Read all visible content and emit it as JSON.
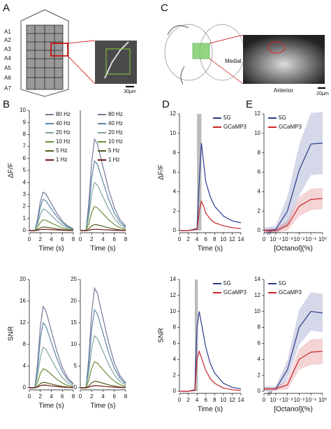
{
  "figure": {
    "panel_labels": [
      "A",
      "B",
      "C",
      "D",
      "E"
    ],
    "segment_labels": [
      "A1",
      "A2",
      "A3",
      "A4",
      "A5",
      "A6",
      "A7"
    ],
    "scale_bars": [
      "30μm",
      "20μm"
    ],
    "orientation_labels": [
      "Medial",
      "Anterior"
    ]
  },
  "chart_data": [
    {
      "type": "line",
      "ylabel": "ΔF/F",
      "xlabel": "Time (s)",
      "legend": "upper right",
      "x": [
        0,
        1,
        1.5,
        2,
        2.5,
        3,
        4,
        5,
        6,
        7,
        8
      ],
      "xlim": [
        0,
        8
      ],
      "xticks": [
        0,
        2,
        4,
        6,
        8
      ],
      "ylim": [
        0,
        10
      ],
      "yticks": [
        0,
        1,
        2,
        3,
        4,
        5,
        6,
        7,
        8,
        9,
        10
      ],
      "series": [
        {
          "name": "80 Hz",
          "color": "#77779a",
          "values": [
            0,
            0,
            0.96,
            2.4,
            3.2,
            3.04,
            2.24,
            1.44,
            0.8,
            0.38,
            0.16
          ]
        },
        {
          "name": "40 Hz",
          "color": "#5b87a8",
          "values": [
            0,
            0,
            0.78,
            1.95,
            2.6,
            2.47,
            1.82,
            1.17,
            0.65,
            0.31,
            0.13
          ]
        },
        {
          "name": "20 Hz",
          "color": "#7ea4a0",
          "values": [
            0,
            0,
            0.54,
            1.35,
            1.8,
            1.71,
            1.26,
            0.81,
            0.45,
            0.22,
            0.09
          ]
        },
        {
          "name": "10 Hz",
          "color": "#6b8e3a",
          "values": [
            0,
            0,
            0.27,
            0.68,
            0.9,
            0.86,
            0.63,
            0.41,
            0.23,
            0.11,
            0.05
          ]
        },
        {
          "name": "5 Hz",
          "color": "#5a5a20",
          "values": [
            0,
            0,
            0.09,
            0.23,
            0.3,
            0.29,
            0.21,
            0.14,
            0.08,
            0.04,
            0.02
          ]
        },
        {
          "name": "1 Hz",
          "color": "#6b1a1a",
          "values": [
            0,
            0,
            0.03,
            0.08,
            0.1,
            0.1,
            0.07,
            0.05,
            0.03,
            0.01,
            0
          ]
        }
      ]
    },
    {
      "type": "line",
      "xlabel": "Time (s)",
      "legend": "upper right",
      "x": [
        0,
        1,
        1.5,
        2,
        2.5,
        3,
        4,
        5,
        6,
        7,
        8
      ],
      "xlim": [
        0,
        8
      ],
      "xticks": [
        0,
        2,
        4,
        6,
        8
      ],
      "ylim": [
        0,
        10
      ],
      "series": [
        {
          "name": "80 Hz",
          "color": "#77779a",
          "values": [
            0,
            0,
            2.28,
            5.7,
            7.6,
            7.22,
            5.32,
            3.42,
            1.9,
            0.91,
            0.38
          ]
        },
        {
          "name": "40 Hz",
          "color": "#5b87a8",
          "values": [
            0,
            0,
            1.74,
            4.35,
            5.8,
            5.51,
            4.06,
            2.61,
            1.45,
            0.7,
            0.29
          ]
        },
        {
          "name": "20 Hz",
          "color": "#7ea4a0",
          "values": [
            0,
            0,
            1.2,
            3,
            4,
            3.8,
            2.8,
            1.8,
            1,
            0.48,
            0.2
          ]
        },
        {
          "name": "10 Hz",
          "color": "#6b8e3a",
          "values": [
            0,
            0,
            0.6,
            1.5,
            2,
            1.9,
            1.4,
            0.9,
            0.5,
            0.24,
            0.1
          ]
        },
        {
          "name": "5 Hz",
          "color": "#5a5a20",
          "values": [
            0,
            0,
            0.15,
            0.38,
            0.5,
            0.48,
            0.35,
            0.23,
            0.13,
            0.06,
            0.03
          ]
        },
        {
          "name": "1 Hz",
          "color": "#6b1a1a",
          "values": [
            0,
            0,
            0.03,
            0.08,
            0.1,
            0.1,
            0.07,
            0.05,
            0.03,
            0.01,
            0
          ]
        }
      ]
    },
    {
      "type": "line",
      "ylabel": "SNR",
      "xlabel": "Time (s)",
      "x": [
        0,
        1,
        1.5,
        2,
        2.5,
        3,
        4,
        5,
        6,
        7,
        8
      ],
      "xlim": [
        0,
        8
      ],
      "xticks": [
        0,
        2,
        4,
        6,
        8
      ],
      "ylim": [
        0,
        20
      ],
      "yticks": [
        0,
        4,
        8,
        12,
        16,
        20
      ],
      "series": [
        {
          "color": "#77779a",
          "values": [
            0,
            0,
            4.5,
            11.25,
            15,
            14.25,
            10.5,
            6.75,
            3.75,
            1.8,
            0.75
          ]
        },
        {
          "color": "#5b87a8",
          "values": [
            0,
            0,
            3.6,
            9,
            12,
            11.4,
            8.4,
            5.4,
            3,
            1.44,
            0.6
          ]
        },
        {
          "color": "#7ea4a0",
          "values": [
            0,
            0,
            2.25,
            5.63,
            7.5,
            7.13,
            5.25,
            3.38,
            1.88,
            0.9,
            0.38
          ]
        },
        {
          "color": "#6b8e3a",
          "values": [
            0,
            0,
            1.05,
            2.63,
            3.5,
            3.33,
            2.45,
            1.58,
            0.88,
            0.42,
            0.18
          ]
        },
        {
          "color": "#5a5a20",
          "values": [
            0,
            0,
            0.3,
            0.75,
            1,
            0.95,
            0.7,
            0.45,
            0.25,
            0.12,
            0.05
          ]
        },
        {
          "color": "#6b1a1a",
          "values": [
            0,
            0,
            0.15,
            0.38,
            0.5,
            0.48,
            0.35,
            0.23,
            0.13,
            0.06,
            0.03
          ]
        }
      ]
    },
    {
      "type": "line",
      "xlabel": "Time (s)",
      "x": [
        0,
        1,
        1.5,
        2,
        2.5,
        3,
        4,
        5,
        6,
        7,
        8
      ],
      "xlim": [
        0,
        8
      ],
      "xticks": [
        0,
        2,
        4,
        6,
        8
      ],
      "ylim": [
        0,
        25
      ],
      "yticks": [
        0,
        5,
        10,
        15,
        20,
        25
      ],
      "series": [
        {
          "color": "#77779a",
          "values": [
            0,
            0,
            6.9,
            17.25,
            23,
            21.85,
            16.1,
            10.35,
            5.75,
            2.76,
            1.15
          ]
        },
        {
          "color": "#5b87a8",
          "values": [
            0,
            0,
            5.4,
            13.5,
            18,
            17.1,
            12.6,
            8.1,
            4.5,
            2.16,
            0.9
          ]
        },
        {
          "color": "#7ea4a0",
          "values": [
            0,
            0,
            3.6,
            9,
            12,
            11.4,
            8.4,
            5.4,
            3,
            1.44,
            0.6
          ]
        },
        {
          "color": "#6b8e3a",
          "values": [
            0,
            0,
            1.8,
            4.5,
            6,
            5.7,
            4.2,
            2.7,
            1.5,
            0.72,
            0.3
          ]
        },
        {
          "color": "#5a5a20",
          "values": [
            0,
            0,
            0.45,
            1.13,
            1.5,
            1.43,
            1.05,
            0.68,
            0.38,
            0.18,
            0.08
          ]
        },
        {
          "color": "#6b1a1a",
          "values": [
            0,
            0,
            0.15,
            0.38,
            0.5,
            0.48,
            0.35,
            0.23,
            0.13,
            0.06,
            0.03
          ]
        }
      ]
    },
    {
      "type": "line",
      "ylabel": "ΔF/F",
      "xlabel": "Time (s)",
      "legend": "upper right",
      "stimulus": [
        4,
        5
      ],
      "x": [
        0,
        2,
        4,
        4.5,
        5,
        5.5,
        6,
        7,
        8,
        10,
        12,
        14
      ],
      "xlim": [
        0,
        14
      ],
      "xticks": [
        0,
        2,
        4,
        6,
        8,
        10,
        12,
        14
      ],
      "ylim": [
        0,
        12
      ],
      "yticks": [
        0,
        2,
        4,
        6,
        8,
        10,
        12
      ],
      "series": [
        {
          "name": "5G",
          "color": "#2b3a8c",
          "values": [
            0,
            0,
            0.2,
            5,
            9,
            7,
            5,
            3.5,
            2.5,
            1.5,
            1,
            0.8
          ]
        },
        {
          "name": "GCaMP3",
          "color": "#c8262c",
          "values": [
            0,
            0,
            0.1,
            2,
            3,
            2.5,
            1.8,
            1.2,
            0.8,
            0.5,
            0.3,
            0.2
          ]
        }
      ]
    },
    {
      "type": "line",
      "xlabel": "[Octanol](%)",
      "legend": "upper left",
      "categories": [
        "0",
        "10⁻⁴",
        "10⁻³",
        "10⁻²",
        "10⁻¹",
        "10⁰"
      ],
      "ylim": [
        0,
        12
      ],
      "yticks": [
        0,
        2,
        4,
        6,
        8,
        10,
        12
      ],
      "series": [
        {
          "name": "5G",
          "color": "#2b3a8c",
          "values": [
            0,
            0.1,
            2,
            6.2,
            8.9,
            9
          ],
          "errors": [
            0.3,
            0.4,
            1.5,
            2.6,
            3.2,
            3.2
          ]
        },
        {
          "name": "GCaMP3",
          "color": "#c8262c",
          "values": [
            0,
            0,
            0.5,
            2.5,
            3.2,
            3.3
          ],
          "errors": [
            0.2,
            0.2,
            0.5,
            1,
            1.1,
            1.1
          ]
        }
      ]
    },
    {
      "type": "line",
      "ylabel": "SNR",
      "xlabel": "Time (s)",
      "legend": "upper right",
      "stimulus": [
        3.5,
        4.2
      ],
      "x": [
        0,
        2,
        3.5,
        4,
        4.5,
        5,
        6,
        7,
        8,
        10,
        12,
        14
      ],
      "xlim": [
        0,
        14
      ],
      "xticks": [
        0,
        2,
        4,
        6,
        8,
        10,
        12,
        14
      ],
      "ylim": [
        0,
        14
      ],
      "yticks": [
        0,
        2,
        4,
        6,
        8,
        10,
        12,
        14
      ],
      "series": [
        {
          "name": "5G",
          "color": "#2b3a8c",
          "values": [
            0,
            0,
            0.2,
            8,
            10,
            8.5,
            5.5,
            3.5,
            2.3,
            1,
            0.5,
            0.3
          ]
        },
        {
          "name": "GCaMP3",
          "color": "#c8262c",
          "values": [
            0,
            0,
            0.1,
            4,
            5,
            4.2,
            2.6,
            1.6,
            1,
            0.4,
            0.2,
            0.1
          ]
        }
      ]
    },
    {
      "type": "line",
      "xlabel": "[Octanol](%)",
      "legend": "upper left",
      "categories": [
        "0",
        "10⁻⁴",
        "10⁻³",
        "10⁻²",
        "10⁻¹",
        "10⁰"
      ],
      "ylim": [
        0,
        14
      ],
      "yticks": [
        0,
        2,
        4,
        6,
        8,
        10,
        12,
        14
      ],
      "series": [
        {
          "name": "5G",
          "color": "#2b3a8c",
          "values": [
            0.3,
            0.3,
            2.7,
            8,
            10,
            9.8
          ],
          "errors": [
            0.3,
            0.3,
            1.2,
            2.2,
            2.4,
            2.4
          ]
        },
        {
          "name": "GCaMP3",
          "color": "#c8262c",
          "values": [
            0.3,
            0.3,
            0.8,
            4,
            4.9,
            5
          ],
          "errors": [
            0.2,
            0.2,
            0.6,
            1.3,
            1.6,
            1.6
          ]
        }
      ]
    }
  ]
}
